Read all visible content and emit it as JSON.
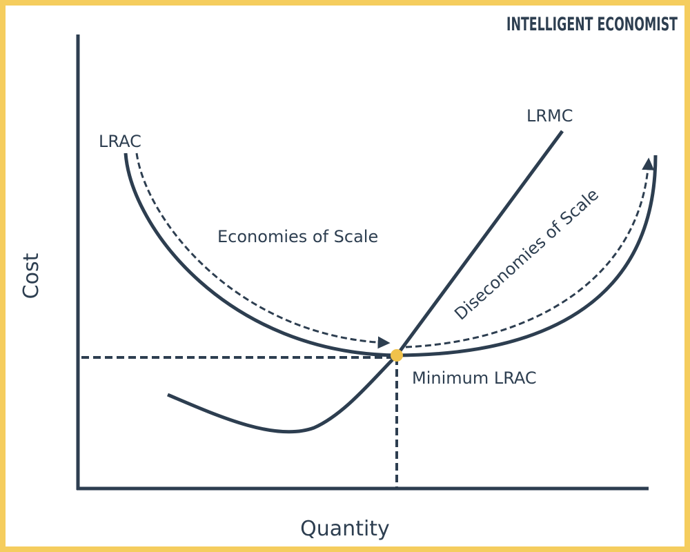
{
  "brand": "INTELLIGENT ECONOMIST",
  "axes": {
    "y_label": "Cost",
    "x_label": "Quantity"
  },
  "curves": {
    "lrac": "LRAC",
    "lrmc": "LRMC"
  },
  "annotations": {
    "economies": "Economies of Scale",
    "diseconomies": "Diseconomies of Scale",
    "minimum": "Minimum LRAC"
  }
}
